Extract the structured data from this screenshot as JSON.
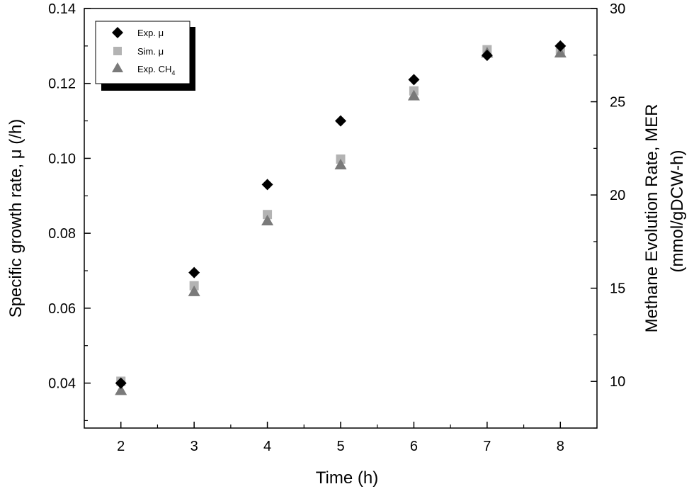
{
  "chart_data": {
    "type": "scatter",
    "xlabel": "Time (h)",
    "ylabel_left": "Specific growth rate, μ (/h)",
    "ylabel_right_line1": "Methane Evolution Rate, MER",
    "ylabel_right_line2": "(mmol/gDCW-h)",
    "x_ticks": [
      "2",
      "3",
      "4",
      "5",
      "6",
      "7",
      "8"
    ],
    "y_left_ticks": [
      "0.04",
      "0.06",
      "0.08",
      "0.10",
      "0.12",
      "0.14"
    ],
    "y_right_ticks": [
      "10",
      "15",
      "20",
      "25",
      "30"
    ],
    "xlim": [
      1.5,
      8.5
    ],
    "ylim_left": [
      0.028,
      0.14
    ],
    "ylim_right": [
      7.5,
      30
    ],
    "grid": false,
    "legend_position": "top-left",
    "series": [
      {
        "name": "Exp. μ",
        "marker": "diamond",
        "color": "#000000",
        "axis": "left",
        "x": [
          2,
          3,
          4,
          5,
          6,
          7,
          8
        ],
        "y": [
          0.04,
          0.0695,
          0.093,
          0.11,
          0.121,
          0.1275,
          0.13
        ]
      },
      {
        "name": "Sim. μ",
        "marker": "square",
        "color": "#b3b3b3",
        "axis": "left",
        "x": [
          2,
          3,
          4,
          5,
          6,
          7,
          8
        ],
        "y": [
          0.0405,
          0.066,
          0.085,
          0.0998,
          0.118,
          0.129,
          0.129
        ]
      },
      {
        "name": "Exp. CH",
        "name_subscript": "4",
        "marker": "triangle",
        "color": "#7a7a7a",
        "axis": "right",
        "x": [
          2,
          3,
          4,
          5,
          6,
          7,
          8
        ],
        "y": [
          9.5,
          14.8,
          18.6,
          21.6,
          25.3,
          27.6,
          27.6
        ]
      }
    ]
  }
}
